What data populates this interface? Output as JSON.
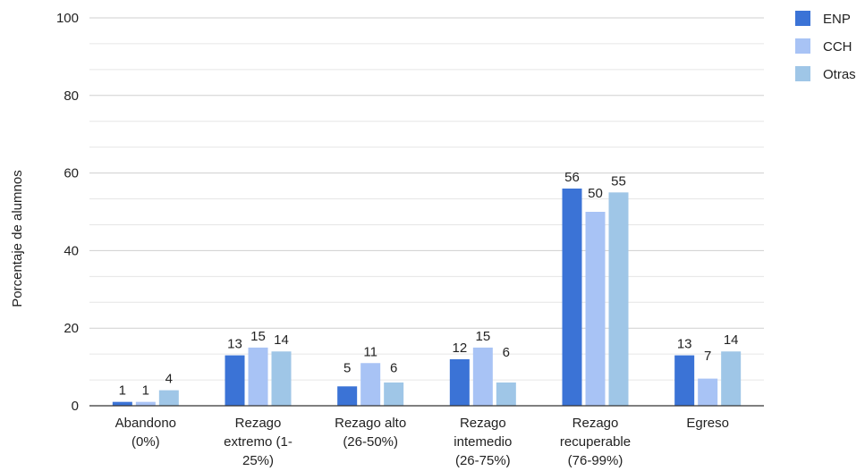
{
  "chart_data": {
    "type": "bar",
    "title": "",
    "xlabel": "",
    "ylabel": "Porcentaje de alumnos",
    "ylim": [
      0,
      100
    ],
    "yticks": [
      0,
      20,
      40,
      60,
      80,
      100
    ],
    "grid": true,
    "legend_position": "top-right",
    "categories": [
      [
        "Abandono",
        "(0%)"
      ],
      [
        "Rezago",
        "extremo (1-",
        "25%)"
      ],
      [
        "Rezago alto",
        "(26-50%)"
      ],
      [
        "Rezago",
        "intemedio",
        "(26-75%)"
      ],
      [
        "Rezago",
        "recuperable",
        "(76-99%)"
      ],
      [
        "Egreso"
      ]
    ],
    "series": [
      {
        "name": "ENP",
        "color": "#3b73d6",
        "values": [
          1,
          13,
          5,
          12,
          56,
          13
        ]
      },
      {
        "name": "CCH",
        "color": "#a8c3f5",
        "values": [
          1,
          15,
          11,
          15,
          50,
          7
        ]
      },
      {
        "name": "Otras",
        "color": "#9fc6e7",
        "values": [
          4,
          14,
          6,
          6,
          55,
          14
        ]
      }
    ]
  }
}
